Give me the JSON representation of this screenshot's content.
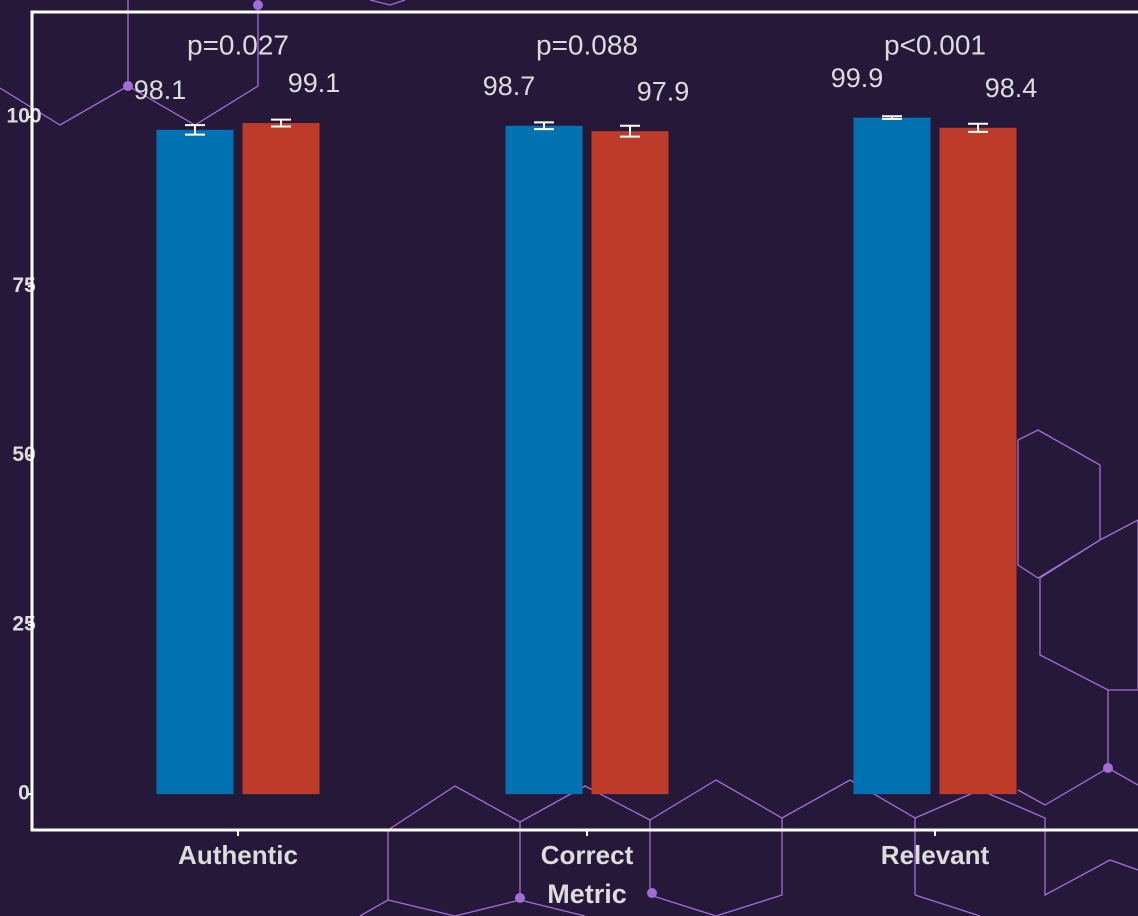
{
  "chart_data": {
    "type": "bar",
    "x_label": "Metric",
    "categories": [
      "Authentic",
      "Correct",
      "Relevant"
    ],
    "series": [
      {
        "color": "#0072b2",
        "values": [
          98.1,
          98.7,
          99.9
        ],
        "errors": [
          0.7,
          0.5,
          0.2
        ]
      },
      {
        "color": "#bd3b28",
        "values": [
          99.1,
          97.9,
          98.4
        ],
        "errors": [
          0.5,
          0.8,
          0.6
        ]
      }
    ],
    "annotations": [
      "p=0.027",
      "p=0.088",
      "p<0.001"
    ],
    "ylim": [
      -5.3,
      115.5
    ],
    "yticks": [
      0,
      25,
      50,
      75,
      100
    ],
    "grid": false
  }
}
